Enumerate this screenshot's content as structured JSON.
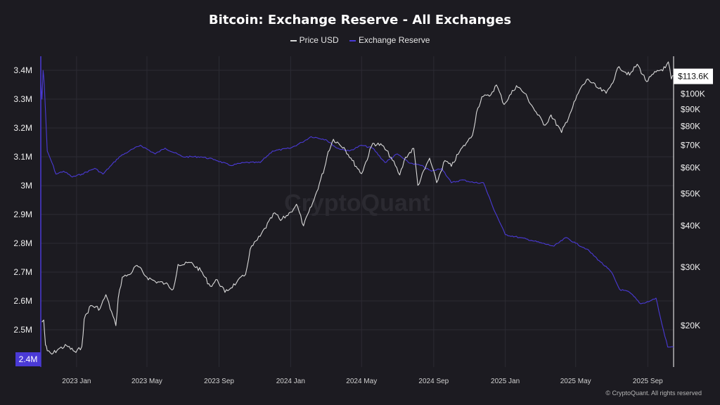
{
  "chart_data": {
    "type": "line",
    "title": "Bitcoin: Exchange Reserve - All Exchanges",
    "x_ticks": [
      "2023 Jan",
      "2023 May",
      "2023 Sep",
      "2024 Jan",
      "2024 May",
      "2024 Sep",
      "2025 Jan",
      "2025 May",
      "2025 Sep"
    ],
    "x_tick_dates": [
      "2023-01-01",
      "2023-05-01",
      "2023-09-01",
      "2024-01-01",
      "2024-05-01",
      "2024-09-01",
      "2025-01-01",
      "2025-05-01",
      "2025-09-01"
    ],
    "x_range": [
      "2022-11-01",
      "2025-10-15"
    ],
    "left_axis": {
      "ticks": [
        "3.4M",
        "3.3M",
        "3.2M",
        "3.1M",
        "3M",
        "2.9M",
        "2.8M",
        "2.7M",
        "2.6M",
        "2.5M"
      ],
      "tick_values": [
        3400000,
        3300000,
        3200000,
        3100000,
        3000000,
        2900000,
        2800000,
        2700000,
        2600000,
        2500000
      ],
      "range": [
        2400000,
        3400000
      ],
      "current_label": "2.4M",
      "current_value": 2400000,
      "color": "#4a3ad6"
    },
    "right_axis": {
      "scale": "log",
      "ticks": [
        "$100K",
        "$90K",
        "$80K",
        "$70K",
        "$60K",
        "$50K",
        "$40K",
        "$30K",
        "$20K"
      ],
      "tick_values": [
        100000,
        90000,
        80000,
        70000,
        60000,
        50000,
        40000,
        30000,
        20000
      ],
      "range": [
        15000,
        130000
      ],
      "current_label": "$113.6K",
      "current_value": 113600,
      "color": "#ffffff"
    },
    "grid": true,
    "legend_position": "top-center",
    "watermark": "CryptoQuant",
    "series": [
      {
        "name": "Price USD",
        "axis": "right",
        "color": "#d9d9d9",
        "x": [
          "2022-11-03",
          "2022-11-06",
          "2022-11-09",
          "2022-11-12",
          "2022-11-20",
          "2022-12-01",
          "2022-12-15",
          "2022-12-31",
          "2023-01-10",
          "2023-01-14",
          "2023-01-25",
          "2023-02-10",
          "2023-02-20",
          "2023-03-09",
          "2023-03-13",
          "2023-03-20",
          "2023-04-01",
          "2023-04-14",
          "2023-05-01",
          "2023-05-15",
          "2023-06-01",
          "2023-06-15",
          "2023-06-23",
          "2023-07-01",
          "2023-07-14",
          "2023-08-01",
          "2023-08-17",
          "2023-08-29",
          "2023-09-11",
          "2023-10-01",
          "2023-10-16",
          "2023-10-24",
          "2023-11-10",
          "2023-12-05",
          "2023-12-15",
          "2024-01-01",
          "2024-01-11",
          "2024-01-23",
          "2024-02-10",
          "2024-02-28",
          "2024-03-05",
          "2024-03-14",
          "2024-04-01",
          "2024-04-15",
          "2024-05-01",
          "2024-05-20",
          "2024-06-05",
          "2024-06-20",
          "2024-07-05",
          "2024-07-15",
          "2024-07-29",
          "2024-08-05",
          "2024-08-25",
          "2024-09-06",
          "2024-09-20",
          "2024-10-01",
          "2024-10-15",
          "2024-10-29",
          "2024-11-06",
          "2024-11-13",
          "2024-11-22",
          "2024-12-05",
          "2024-12-17",
          "2024-12-30",
          "2025-01-20",
          "2025-02-03",
          "2025-02-25",
          "2025-03-10",
          "2025-03-20",
          "2025-04-07",
          "2025-04-21",
          "2025-05-08",
          "2025-05-22",
          "2025-06-05",
          "2025-06-22",
          "2025-07-01",
          "2025-07-14",
          "2025-08-01",
          "2025-08-14",
          "2025-08-30",
          "2025-09-15",
          "2025-10-01",
          "2025-10-06",
          "2025-10-11",
          "2025-10-15"
        ],
        "y": [
          20500,
          20800,
          17500,
          16800,
          16400,
          17000,
          17400,
          16600,
          17300,
          20900,
          23000,
          22500,
          24800,
          20000,
          24200,
          28000,
          28500,
          30400,
          28000,
          27200,
          26800,
          25800,
          30600,
          30500,
          31000,
          29300,
          26300,
          27500,
          25200,
          27000,
          28500,
          34000,
          37200,
          43800,
          41500,
          44000,
          46500,
          40000,
          48000,
          60000,
          67000,
          73000,
          69000,
          63000,
          57500,
          71000,
          70000,
          64500,
          57000,
          64500,
          68500,
          53000,
          64000,
          54000,
          63000,
          60500,
          67000,
          72000,
          75000,
          88000,
          98000,
          98500,
          106500,
          93000,
          106000,
          100500,
          86500,
          80500,
          86500,
          76500,
          87000,
          103000,
          111000,
          105000,
          100500,
          107000,
          121000,
          114000,
          123000,
          109000,
          116500,
          120000,
          125000,
          111000,
          113600
        ]
      },
      {
        "name": "Exchange Reserve",
        "axis": "left",
        "color": "#4a3ad6",
        "x": [
          "2022-11-01",
          "2022-11-03",
          "2022-11-05",
          "2022-11-07",
          "2022-11-12",
          "2022-11-20",
          "2022-11-27",
          "2022-12-10",
          "2022-12-25",
          "2023-01-10",
          "2023-02-01",
          "2023-02-15",
          "2023-03-01",
          "2023-03-15",
          "2023-04-01",
          "2023-04-20",
          "2023-05-15",
          "2023-06-01",
          "2023-07-01",
          "2023-08-01",
          "2023-08-25",
          "2023-09-20",
          "2023-10-15",
          "2023-11-10",
          "2023-12-01",
          "2024-01-01",
          "2024-01-20",
          "2024-02-05",
          "2024-03-01",
          "2024-03-20",
          "2024-04-10",
          "2024-05-01",
          "2024-05-20",
          "2024-06-10",
          "2024-07-01",
          "2024-07-20",
          "2024-08-10",
          "2024-08-28",
          "2024-09-15",
          "2024-10-01",
          "2024-10-20",
          "2024-11-10",
          "2024-11-25",
          "2024-12-10",
          "2025-01-01",
          "2025-01-25",
          "2025-02-15",
          "2025-03-05",
          "2025-03-25",
          "2025-04-15",
          "2025-05-01",
          "2025-05-20",
          "2025-06-10",
          "2025-07-01",
          "2025-07-15",
          "2025-08-01",
          "2025-08-20",
          "2025-09-05",
          "2025-09-15",
          "2025-09-25",
          "2025-10-05",
          "2025-10-15"
        ],
        "y": [
          3360000,
          3300000,
          3400000,
          3350000,
          3120000,
          3080000,
          3040000,
          3050000,
          3030000,
          3040000,
          3060000,
          3040000,
          3070000,
          3100000,
          3120000,
          3140000,
          3110000,
          3130000,
          3100000,
          3100000,
          3090000,
          3070000,
          3080000,
          3080000,
          3120000,
          3130000,
          3150000,
          3170000,
          3160000,
          3130000,
          3120000,
          3140000,
          3130000,
          3080000,
          3110000,
          3080000,
          3070000,
          3050000,
          3060000,
          3010000,
          3020000,
          3010000,
          3010000,
          2930000,
          2830000,
          2820000,
          2810000,
          2800000,
          2790000,
          2820000,
          2800000,
          2780000,
          2740000,
          2700000,
          2640000,
          2630000,
          2590000,
          2600000,
          2610000,
          2520000,
          2440000,
          2440000
        ]
      }
    ]
  },
  "footer": {
    "copyright": "© CryptoQuant. All rights reserved"
  }
}
